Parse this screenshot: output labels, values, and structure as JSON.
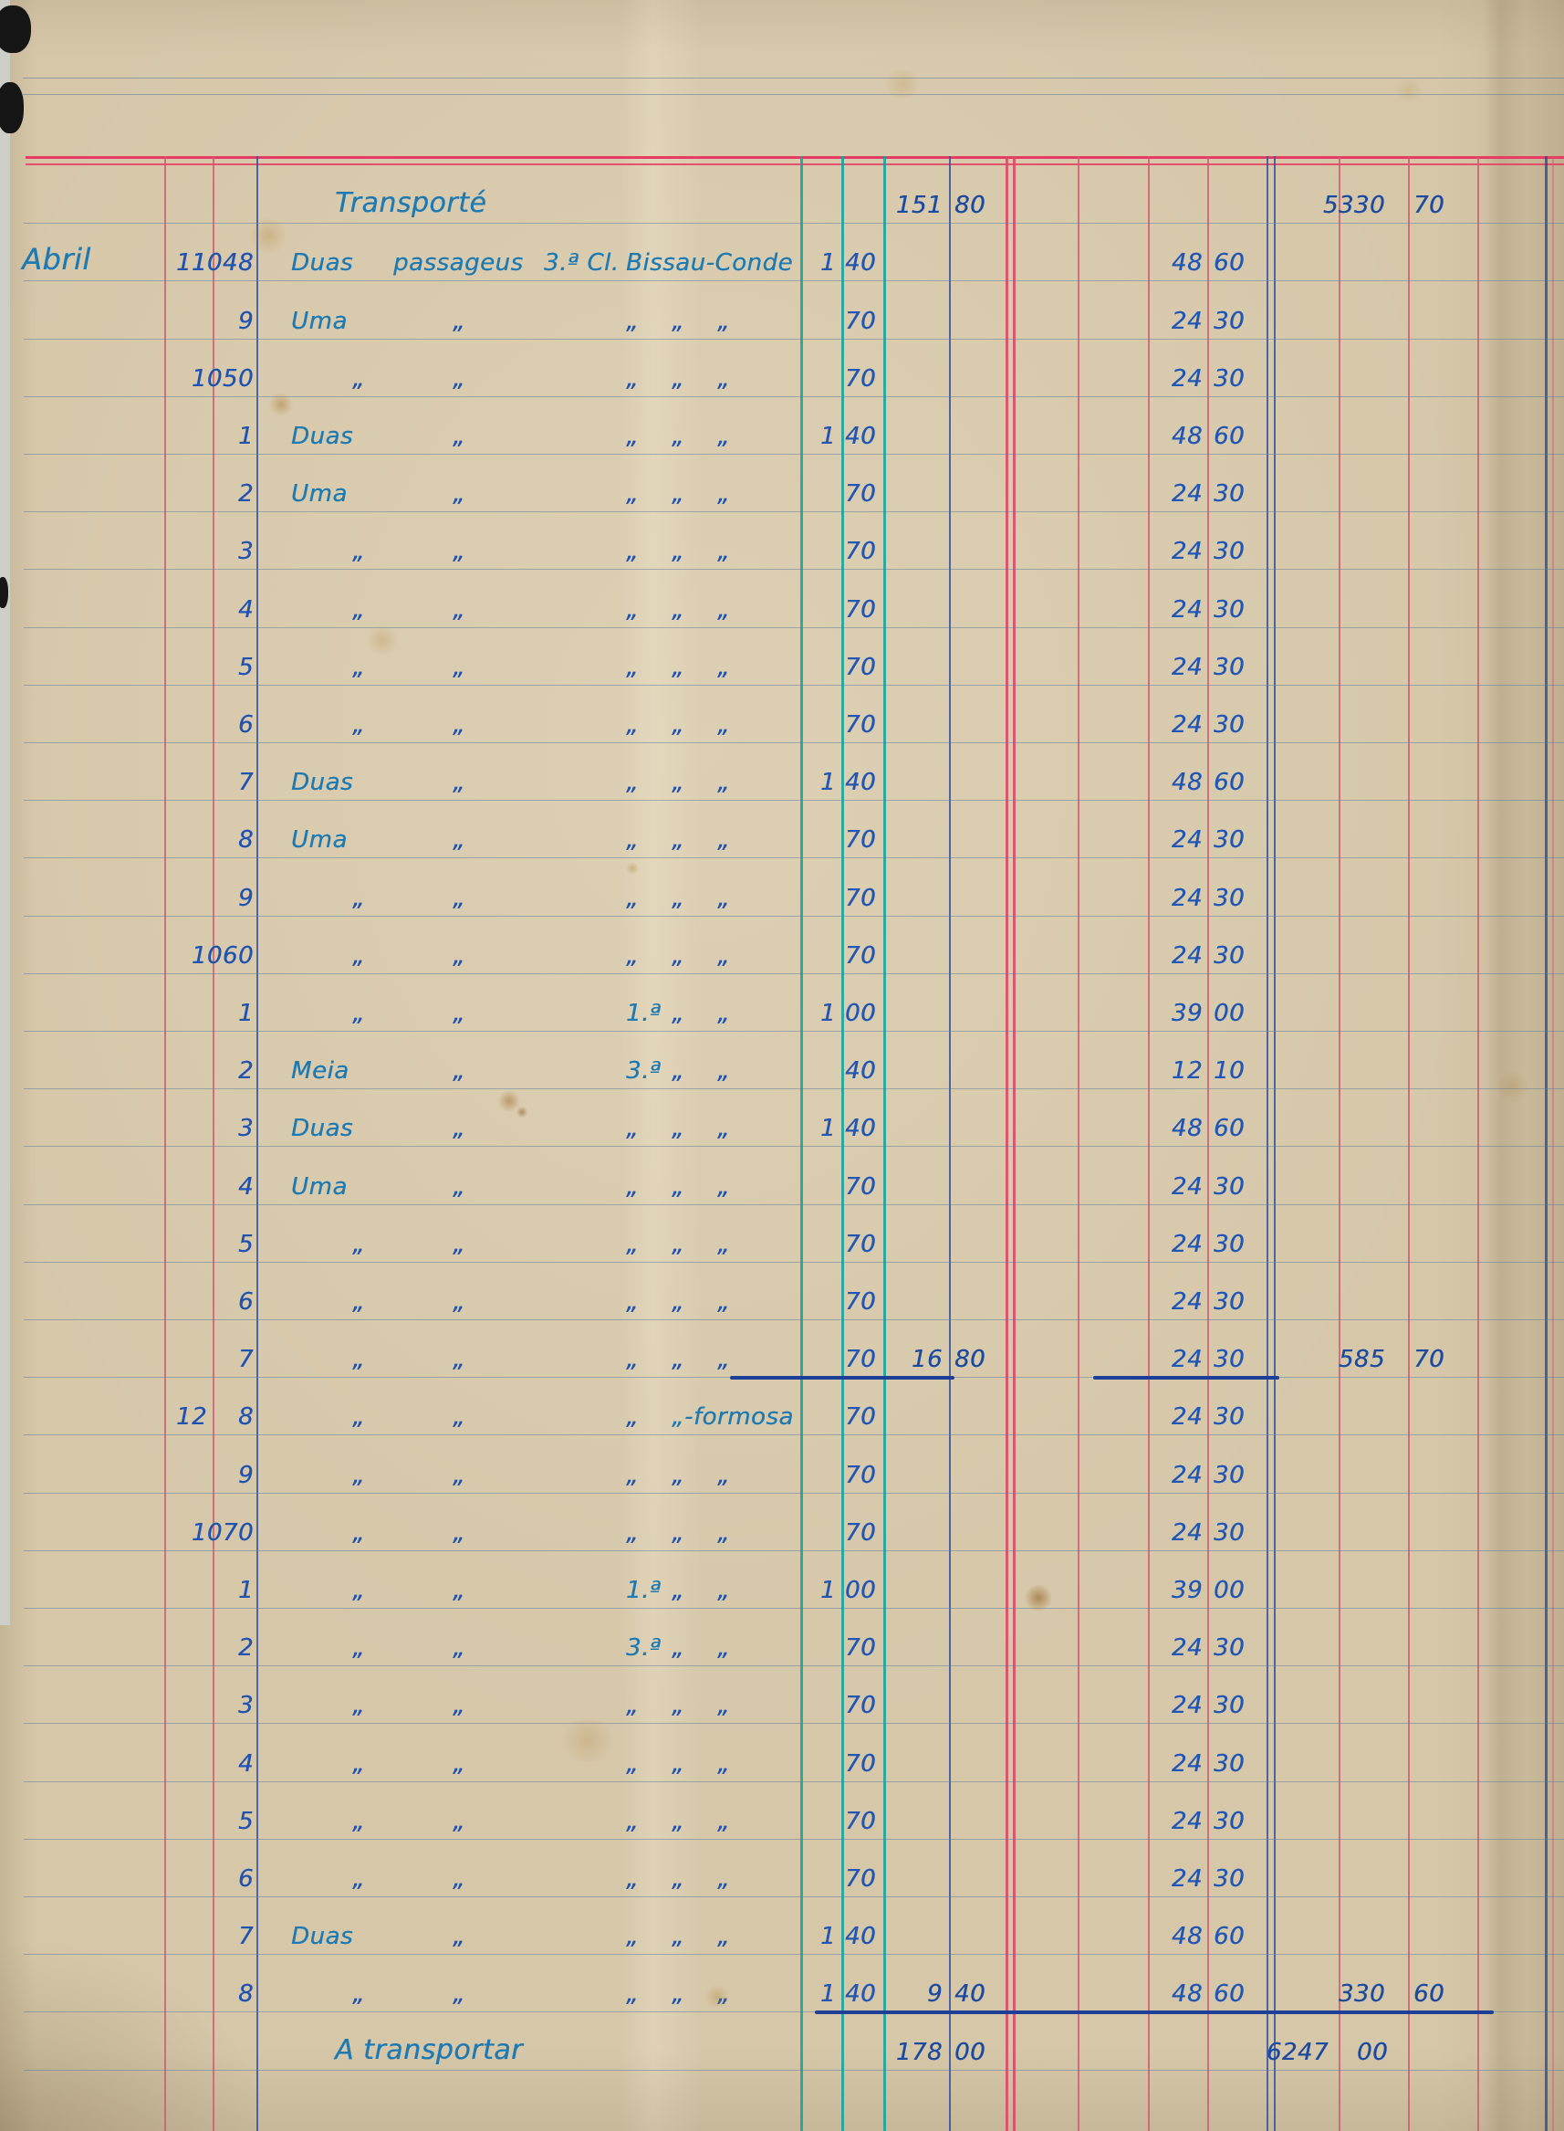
{
  "ledger": {
    "header_row": {
      "label": "Transporté",
      "col_a": {
        "i": "151",
        "c": "80"
      },
      "total": {
        "i": "5330",
        "c": "70"
      }
    },
    "rows": [
      {
        "month": "Abril",
        "day": "11",
        "receipt": "1048",
        "desc": [
          [
            0,
            "Duas"
          ],
          [
            2,
            "passageus"
          ],
          [
            4,
            "3.ª Cl."
          ],
          [
            5,
            "Bissau-Conde"
          ]
        ],
        "fare": {
          "i": "1",
          "c": "40"
        },
        "amount": {
          "i": "48",
          "c": "60"
        }
      },
      {
        "receipt": "9",
        "desc": [
          [
            0,
            "Uma"
          ],
          [
            3,
            "„"
          ],
          [
            5,
            "„"
          ],
          [
            6,
            "„"
          ],
          [
            7,
            "„"
          ]
        ],
        "fare": {
          "c": "70"
        },
        "amount": {
          "i": "24",
          "c": "30"
        }
      },
      {
        "receipt": "1050",
        "desc": [
          [
            1,
            "„"
          ],
          [
            3,
            "„"
          ],
          [
            5,
            "„"
          ],
          [
            6,
            "„"
          ],
          [
            7,
            "„"
          ]
        ],
        "fare": {
          "c": "70"
        },
        "amount": {
          "i": "24",
          "c": "30"
        }
      },
      {
        "receipt": "1",
        "desc": [
          [
            0,
            "Duas"
          ],
          [
            3,
            "„"
          ],
          [
            5,
            "„"
          ],
          [
            6,
            "„"
          ],
          [
            7,
            "„"
          ]
        ],
        "fare": {
          "i": "1",
          "c": "40"
        },
        "amount": {
          "i": "48",
          "c": "60"
        }
      },
      {
        "receipt": "2",
        "desc": [
          [
            0,
            "Uma"
          ],
          [
            3,
            "„"
          ],
          [
            5,
            "„"
          ],
          [
            6,
            "„"
          ],
          [
            7,
            "„"
          ]
        ],
        "fare": {
          "c": "70"
        },
        "amount": {
          "i": "24",
          "c": "30"
        }
      },
      {
        "receipt": "3",
        "desc": [
          [
            1,
            "„"
          ],
          [
            3,
            "„"
          ],
          [
            5,
            "„"
          ],
          [
            6,
            "„"
          ],
          [
            7,
            "„"
          ]
        ],
        "fare": {
          "c": "70"
        },
        "amount": {
          "i": "24",
          "c": "30"
        }
      },
      {
        "receipt": "4",
        "desc": [
          [
            1,
            "„"
          ],
          [
            3,
            "„"
          ],
          [
            5,
            "„"
          ],
          [
            6,
            "„"
          ],
          [
            7,
            "„"
          ]
        ],
        "fare": {
          "c": "70"
        },
        "amount": {
          "i": "24",
          "c": "30"
        }
      },
      {
        "receipt": "5",
        "desc": [
          [
            1,
            "„"
          ],
          [
            3,
            "„"
          ],
          [
            5,
            "„"
          ],
          [
            6,
            "„"
          ],
          [
            7,
            "„"
          ]
        ],
        "fare": {
          "c": "70"
        },
        "amount": {
          "i": "24",
          "c": "30"
        }
      },
      {
        "receipt": "6",
        "desc": [
          [
            1,
            "„"
          ],
          [
            3,
            "„"
          ],
          [
            5,
            "„"
          ],
          [
            6,
            "„"
          ],
          [
            7,
            "„"
          ]
        ],
        "fare": {
          "c": "70"
        },
        "amount": {
          "i": "24",
          "c": "30"
        }
      },
      {
        "receipt": "7",
        "desc": [
          [
            0,
            "Duas"
          ],
          [
            3,
            "„"
          ],
          [
            5,
            "„"
          ],
          [
            6,
            "„"
          ],
          [
            7,
            "„"
          ]
        ],
        "fare": {
          "i": "1",
          "c": "40"
        },
        "amount": {
          "i": "48",
          "c": "60"
        }
      },
      {
        "receipt": "8",
        "desc": [
          [
            0,
            "Uma"
          ],
          [
            3,
            "„"
          ],
          [
            5,
            "„"
          ],
          [
            6,
            "„"
          ],
          [
            7,
            "„"
          ]
        ],
        "fare": {
          "c": "70"
        },
        "amount": {
          "i": "24",
          "c": "30"
        }
      },
      {
        "receipt": "9",
        "desc": [
          [
            1,
            "„"
          ],
          [
            3,
            "„"
          ],
          [
            5,
            "„"
          ],
          [
            6,
            "„"
          ],
          [
            7,
            "„"
          ]
        ],
        "fare": {
          "c": "70"
        },
        "amount": {
          "i": "24",
          "c": "30"
        }
      },
      {
        "receipt": "1060",
        "desc": [
          [
            1,
            "„"
          ],
          [
            3,
            "„"
          ],
          [
            5,
            "„"
          ],
          [
            6,
            "„"
          ],
          [
            7,
            "„"
          ]
        ],
        "fare": {
          "c": "70"
        },
        "amount": {
          "i": "24",
          "c": "30"
        }
      },
      {
        "receipt": "1",
        "desc": [
          [
            1,
            "„"
          ],
          [
            3,
            "„"
          ],
          [
            5,
            "1.ª"
          ],
          [
            6,
            "„"
          ],
          [
            7,
            "„"
          ]
        ],
        "fare": {
          "i": "1",
          "c": "00"
        },
        "amount": {
          "i": "39",
          "c": "00"
        }
      },
      {
        "receipt": "2",
        "desc": [
          [
            0,
            "Meia"
          ],
          [
            3,
            "„"
          ],
          [
            5,
            "3.ª"
          ],
          [
            6,
            "„"
          ],
          [
            7,
            "„"
          ]
        ],
        "fare": {
          "c": "40"
        },
        "amount": {
          "i": "12",
          "c": "10"
        }
      },
      {
        "receipt": "3",
        "desc": [
          [
            0,
            "Duas"
          ],
          [
            3,
            "„"
          ],
          [
            5,
            "„"
          ],
          [
            6,
            "„"
          ],
          [
            7,
            "„"
          ]
        ],
        "fare": {
          "i": "1",
          "c": "40"
        },
        "amount": {
          "i": "48",
          "c": "60"
        }
      },
      {
        "receipt": "4",
        "desc": [
          [
            0,
            "Uma"
          ],
          [
            3,
            "„"
          ],
          [
            5,
            "„"
          ],
          [
            6,
            "„"
          ],
          [
            7,
            "„"
          ]
        ],
        "fare": {
          "c": "70"
        },
        "amount": {
          "i": "24",
          "c": "30"
        }
      },
      {
        "receipt": "5",
        "desc": [
          [
            1,
            "„"
          ],
          [
            3,
            "„"
          ],
          [
            5,
            "„"
          ],
          [
            6,
            "„"
          ],
          [
            7,
            "„"
          ]
        ],
        "fare": {
          "c": "70"
        },
        "amount": {
          "i": "24",
          "c": "30"
        }
      },
      {
        "receipt": "6",
        "desc": [
          [
            1,
            "„"
          ],
          [
            3,
            "„"
          ],
          [
            5,
            "„"
          ],
          [
            6,
            "„"
          ],
          [
            7,
            "„"
          ]
        ],
        "fare": {
          "c": "70"
        },
        "amount": {
          "i": "24",
          "c": "30"
        }
      },
      {
        "receipt": "7",
        "desc": [
          [
            1,
            "„"
          ],
          [
            3,
            "„"
          ],
          [
            5,
            "„"
          ],
          [
            6,
            "„"
          ],
          [
            7,
            "„"
          ]
        ],
        "fare": {
          "c": "70"
        },
        "col_a": {
          "i": "16",
          "c": "80"
        },
        "amount": {
          "i": "24",
          "c": "30"
        },
        "total": {
          "i": "585",
          "c": "70"
        },
        "underline": "short"
      },
      {
        "day": "12",
        "receipt": "8",
        "desc": [
          [
            1,
            "„"
          ],
          [
            3,
            "„"
          ],
          [
            5,
            "„"
          ],
          [
            6,
            "„-formosa"
          ]
        ],
        "fare": {
          "c": "70"
        },
        "amount": {
          "i": "24",
          "c": "30"
        }
      },
      {
        "receipt": "9",
        "desc": [
          [
            1,
            "„"
          ],
          [
            3,
            "„"
          ],
          [
            5,
            "„"
          ],
          [
            6,
            "„"
          ],
          [
            7,
            "„"
          ]
        ],
        "fare": {
          "c": "70"
        },
        "amount": {
          "i": "24",
          "c": "30"
        }
      },
      {
        "receipt": "1070",
        "desc": [
          [
            1,
            "„"
          ],
          [
            3,
            "„"
          ],
          [
            5,
            "„"
          ],
          [
            6,
            "„"
          ],
          [
            7,
            "„"
          ]
        ],
        "fare": {
          "c": "70"
        },
        "amount": {
          "i": "24",
          "c": "30"
        }
      },
      {
        "receipt": "1",
        "desc": [
          [
            1,
            "„"
          ],
          [
            3,
            "„"
          ],
          [
            5,
            "1.ª"
          ],
          [
            6,
            "„"
          ],
          [
            7,
            "„"
          ]
        ],
        "fare": {
          "i": "1",
          "c": "00"
        },
        "amount": {
          "i": "39",
          "c": "00"
        }
      },
      {
        "receipt": "2",
        "desc": [
          [
            1,
            "„"
          ],
          [
            3,
            "„"
          ],
          [
            5,
            "3.ª"
          ],
          [
            6,
            "„"
          ],
          [
            7,
            "„"
          ]
        ],
        "fare": {
          "c": "70"
        },
        "amount": {
          "i": "24",
          "c": "30"
        }
      },
      {
        "receipt": "3",
        "desc": [
          [
            1,
            "„"
          ],
          [
            3,
            "„"
          ],
          [
            5,
            "„"
          ],
          [
            6,
            "„"
          ],
          [
            7,
            "„"
          ]
        ],
        "fare": {
          "c": "70"
        },
        "amount": {
          "i": "24",
          "c": "30"
        }
      },
      {
        "receipt": "4",
        "desc": [
          [
            1,
            "„"
          ],
          [
            3,
            "„"
          ],
          [
            5,
            "„"
          ],
          [
            6,
            "„"
          ],
          [
            7,
            "„"
          ]
        ],
        "fare": {
          "c": "70"
        },
        "amount": {
          "i": "24",
          "c": "30"
        }
      },
      {
        "receipt": "5",
        "desc": [
          [
            1,
            "„"
          ],
          [
            3,
            "„"
          ],
          [
            5,
            "„"
          ],
          [
            6,
            "„"
          ],
          [
            7,
            "„"
          ]
        ],
        "fare": {
          "c": "70"
        },
        "amount": {
          "i": "24",
          "c": "30"
        }
      },
      {
        "receipt": "6",
        "desc": [
          [
            1,
            "„"
          ],
          [
            3,
            "„"
          ],
          [
            5,
            "„"
          ],
          [
            6,
            "„"
          ],
          [
            7,
            "„"
          ]
        ],
        "fare": {
          "c": "70"
        },
        "amount": {
          "i": "24",
          "c": "30"
        }
      },
      {
        "receipt": "7",
        "desc": [
          [
            0,
            "Duas"
          ],
          [
            3,
            "„"
          ],
          [
            5,
            "„"
          ],
          [
            6,
            "„"
          ],
          [
            7,
            "„"
          ]
        ],
        "fare": {
          "i": "1",
          "c": "40"
        },
        "amount": {
          "i": "48",
          "c": "60"
        }
      },
      {
        "receipt": "8",
        "desc": [
          [
            1,
            "„"
          ],
          [
            3,
            "„"
          ],
          [
            5,
            "„"
          ],
          [
            6,
            "„"
          ],
          [
            7,
            "„"
          ]
        ],
        "fare": {
          "i": "1",
          "c": "40"
        },
        "col_a": {
          "i": "9",
          "c": "40"
        },
        "amount": {
          "i": "48",
          "c": "60"
        },
        "total": {
          "i": "330",
          "c": "60"
        },
        "underline": "long"
      }
    ],
    "footer_row": {
      "label": "A transportar",
      "col_a": {
        "i": "178",
        "c": "00"
      },
      "total": {
        "i": "6247",
        "c": "00"
      }
    }
  },
  "colors": {
    "paper": "#d6c7a9",
    "ink_blue": "#2053b0",
    "ink_teal": "#1f7ab2",
    "ruling_pink": "#e63c61",
    "ruling_red": "#d05870",
    "ruling_teal": "#0ea29d",
    "ruling_blue": "#34529e"
  }
}
